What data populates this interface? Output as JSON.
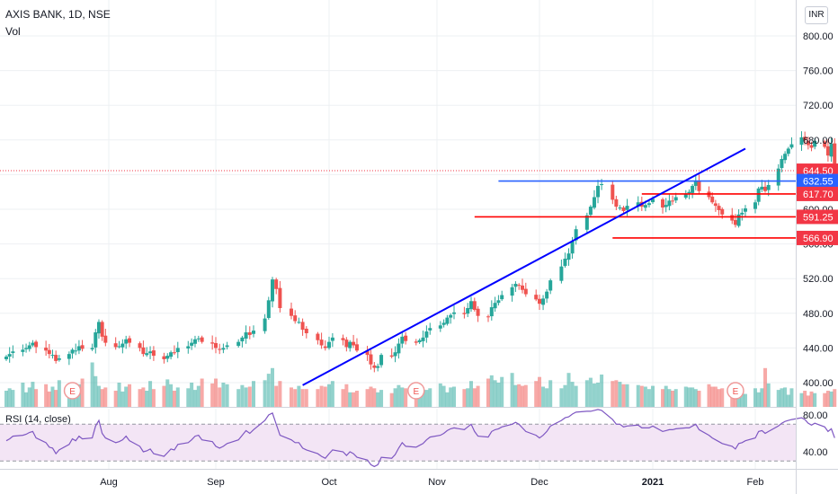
{
  "header": {
    "symbol_title": "AXIS BANK, 1D, NSE",
    "volume_label": "Vol",
    "rsi_label": "RSI (14, close)",
    "currency": "INR"
  },
  "colors": {
    "up": "#26a69a",
    "down": "#ef5350",
    "trendline": "#0000ff",
    "support_line": "#ff0000",
    "resistance_line": "#2962ff",
    "rsi_line": "#7e57c2",
    "rsi_band": "#f3e5f5",
    "price_tag": "#f23645",
    "blue_tag": "#2962ff"
  },
  "chart_data": {
    "type": "candlestick",
    "price_axis": {
      "ylim": [
        380,
        820
      ],
      "ticks": [
        "800.00",
        "760.00",
        "720.00",
        "680.00",
        "640.00",
        "600.00",
        "560.00",
        "520.00",
        "480.00",
        "440.00",
        "400.00"
      ]
    },
    "time_axis": {
      "labels": [
        "Aug",
        "Sep",
        "Oct",
        "Nov",
        "Dec",
        "2021",
        "Feb"
      ]
    },
    "price_tags": [
      {
        "label": "644.50",
        "kind": "last"
      },
      {
        "label": "632.55",
        "kind": "blue"
      },
      {
        "label": "617.70",
        "kind": "red"
      },
      {
        "label": "591.25",
        "kind": "red"
      },
      {
        "label": "566.90",
        "kind": "red"
      }
    ],
    "horizontal_levels": [
      {
        "price": 632.55,
        "from_date": "2020-11-19",
        "color": "resistance_line"
      },
      {
        "price": 617.7,
        "from_date": "2020-12-29",
        "color": "support_line"
      },
      {
        "price": 591.25,
        "from_date": "2020-11-12",
        "color": "support_line"
      },
      {
        "price": 566.9,
        "from_date": "2020-12-21",
        "color": "support_line"
      }
    ],
    "trendline": {
      "from": {
        "date": "2020-09-24",
        "price": 397
      },
      "to": {
        "date": "2021-01-29",
        "price": 670
      }
    },
    "earnings_markers": [
      "2020-07-21",
      "2020-10-26",
      "2021-01-26"
    ],
    "rsi": {
      "ticks": [
        "80.00",
        "40.00"
      ],
      "upper": 70,
      "lower": 30
    },
    "closes": [
      430,
      433,
      436,
      438,
      440,
      443,
      446,
      441,
      437,
      433,
      432,
      425,
      428,
      433,
      438,
      437,
      442,
      439,
      440,
      458,
      470,
      453,
      446,
      441,
      442,
      445,
      450,
      446,
      440,
      433,
      434,
      436,
      431,
      427,
      431,
      435,
      434,
      440,
      442,
      446,
      450,
      451,
      447,
      445,
      440,
      438,
      440,
      443,
      447,
      452,
      458,
      455,
      460,
      474,
      495,
      519,
      508,
      486,
      477,
      471,
      470,
      461,
      457,
      449,
      443,
      440,
      447,
      452,
      449,
      441,
      447,
      443,
      437,
      432,
      421,
      417,
      419,
      432,
      430,
      435,
      445,
      453,
      448,
      446,
      449,
      452,
      459,
      463,
      466,
      469,
      475,
      478,
      481,
      479,
      486,
      494,
      484,
      477,
      476,
      487,
      492,
      495,
      501,
      510,
      514,
      512,
      507,
      502,
      496,
      491,
      497,
      505,
      518,
      534,
      543,
      549,
      563,
      577,
      593,
      603,
      614,
      627,
      629,
      611,
      603,
      602,
      598,
      604,
      608,
      603,
      605,
      607,
      612,
      602,
      605,
      610,
      609,
      614,
      618,
      620,
      627,
      632,
      621,
      614,
      608,
      604,
      599,
      594,
      587,
      582,
      594,
      596,
      601,
      608,
      624,
      626,
      621,
      628,
      647,
      658,
      664,
      670,
      675,
      683,
      680,
      674,
      671,
      679,
      672,
      662,
      676,
      644.5
    ],
    "volumes": [
      20,
      23,
      21,
      30,
      18,
      24,
      31,
      22,
      28,
      19,
      25,
      21,
      33,
      26,
      20,
      24,
      28,
      35,
      55,
      38,
      26,
      22,
      24,
      20,
      30,
      19,
      25,
      28,
      22,
      24,
      20,
      32,
      22,
      26,
      34,
      28,
      20,
      24,
      23,
      30,
      21,
      26,
      35,
      29,
      35,
      24,
      30,
      28,
      22,
      27,
      24,
      25,
      32,
      33,
      41,
      48,
      26,
      32,
      24,
      22,
      26,
      22,
      22,
      22,
      26,
      25,
      28,
      32,
      22,
      28,
      18,
      18,
      20,
      22,
      25,
      23,
      18,
      21,
      17,
      23,
      27,
      24,
      23,
      23,
      20,
      20,
      21,
      23,
      29,
      26,
      18,
      24,
      25,
      22,
      23,
      32,
      23,
      26,
      35,
      39,
      33,
      30,
      37,
      42,
      27,
      28,
      26,
      27,
      32,
      37,
      25,
      23,
      33,
      23,
      27,
      42,
      31,
      26,
      33,
      36,
      29,
      30,
      40,
      32,
      33,
      31,
      28,
      28,
      27,
      26,
      25,
      22,
      26,
      22,
      26,
      22,
      20,
      22,
      25,
      24,
      24,
      22,
      20,
      28,
      25,
      25,
      22,
      23,
      20,
      22,
      21,
      17,
      16,
      23,
      18,
      23,
      48,
      29,
      21,
      23,
      24,
      15,
      23,
      17,
      20,
      14,
      19,
      17,
      17,
      20,
      19,
      22
    ],
    "rsi_values": [
      52,
      54,
      57,
      58,
      59,
      61,
      62,
      55,
      50,
      45,
      44,
      38,
      42,
      48,
      54,
      52,
      57,
      54,
      55,
      68,
      74,
      60,
      55,
      50,
      51,
      53,
      57,
      52,
      46,
      40,
      41,
      43,
      38,
      35,
      39,
      43,
      42,
      48,
      50,
      53,
      57,
      58,
      53,
      51,
      46,
      44,
      46,
      49,
      53,
      58,
      63,
      60,
      64,
      74,
      80,
      82,
      70,
      58,
      53,
      50,
      50,
      44,
      42,
      38,
      35,
      33,
      38,
      42,
      40,
      36,
      40,
      38,
      34,
      31,
      26,
      24,
      26,
      34,
      33,
      37,
      44,
      50,
      46,
      45,
      47,
      49,
      53,
      56,
      58,
      60,
      63,
      65,
      66,
      64,
      67,
      70,
      62,
      57,
      56,
      62,
      64,
      65,
      67,
      70,
      72,
      70,
      66,
      62,
      58,
      55,
      58,
      62,
      68,
      74,
      77,
      78,
      81,
      83,
      84,
      84,
      85,
      86,
      85,
      75,
      70,
      70,
      67,
      68,
      69,
      66,
      66,
      66,
      68,
      62,
      63,
      64,
      64,
      65,
      66,
      66,
      68,
      70,
      64,
      58,
      55,
      53,
      51,
      49,
      46,
      43,
      49,
      50,
      52,
      55,
      62,
      63,
      60,
      62,
      68,
      71,
      73,
      74,
      75,
      77,
      75,
      71,
      69,
      71,
      67,
      62,
      65,
      55
    ]
  }
}
